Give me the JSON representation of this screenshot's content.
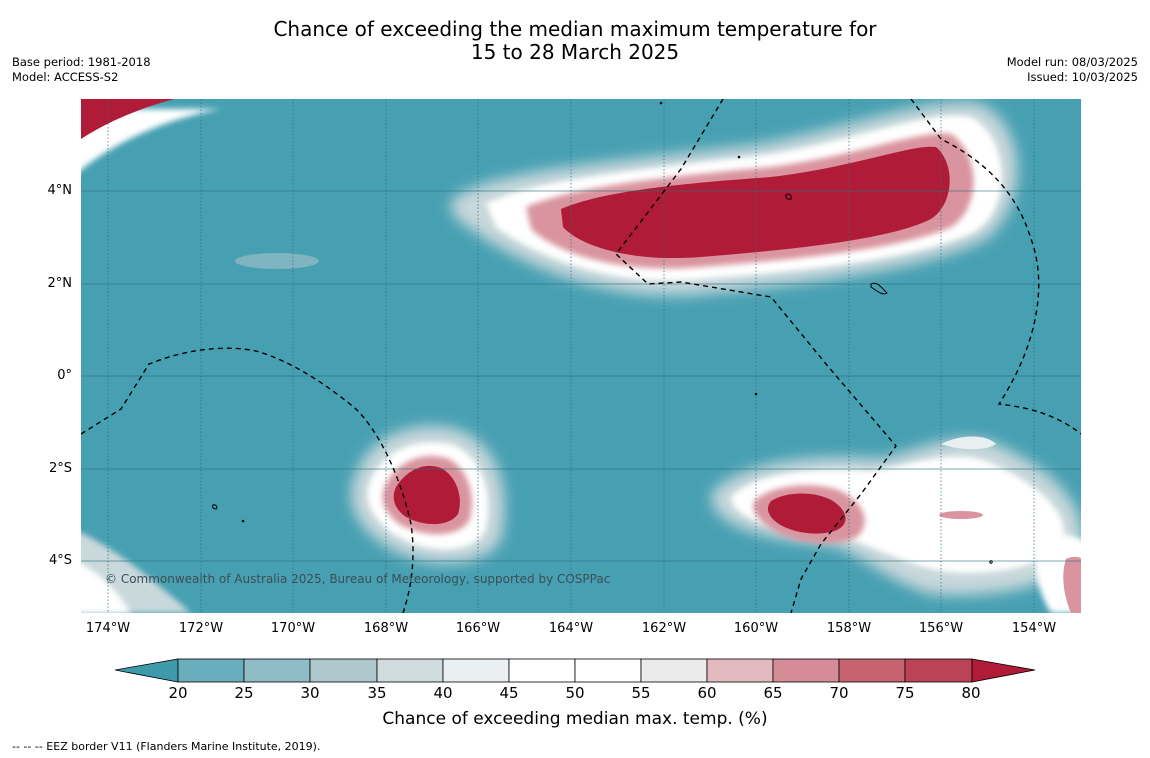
{
  "title": {
    "line1": "Chance of exceeding the median maximum temperature for",
    "line2": "15 to 28 March 2025"
  },
  "meta_left": {
    "base_period": "Base period: 1981-2018",
    "model": "Model: ACCESS-S2"
  },
  "meta_right": {
    "model_run": "Model run: 08/03/2025",
    "issued": "Issued: 10/03/2025"
  },
  "map": {
    "lat_labels": [
      "4°N",
      "2°N",
      "0°",
      "2°S",
      "4°S"
    ],
    "lon_labels": [
      "174°W",
      "172°W",
      "170°W",
      "168°W",
      "166°W",
      "164°W",
      "162°W",
      "160°W",
      "158°W",
      "156°W",
      "154°W"
    ],
    "copyright": "© Commonwealth of Australia 2025, Bureau of Meteorology, supported by COSPPac",
    "colors": {
      "below": "#47a0b2",
      "above": "#b01c38",
      "eez_line": "#000000"
    }
  },
  "colorbar": {
    "ticks": [
      "20",
      "25",
      "30",
      "35",
      "40",
      "45",
      "50",
      "55",
      "60",
      "65",
      "70",
      "75",
      "80"
    ],
    "colors": [
      "#3e9aab",
      "#6aadbc",
      "#8fbcc6",
      "#afc8cd",
      "#cfdbdc",
      "#eaf0f1",
      "#ffffff",
      "#ffffff",
      "#ecebec",
      "#e2b9bf",
      "#d58c97",
      "#c6636f",
      "#bb4356",
      "#b01c38"
    ],
    "label": "Chance of exceeding median max. temp. (%)"
  },
  "footnote": "--  --  -- EEZ border V11 (Flanders Marine Institute, 2019)."
}
